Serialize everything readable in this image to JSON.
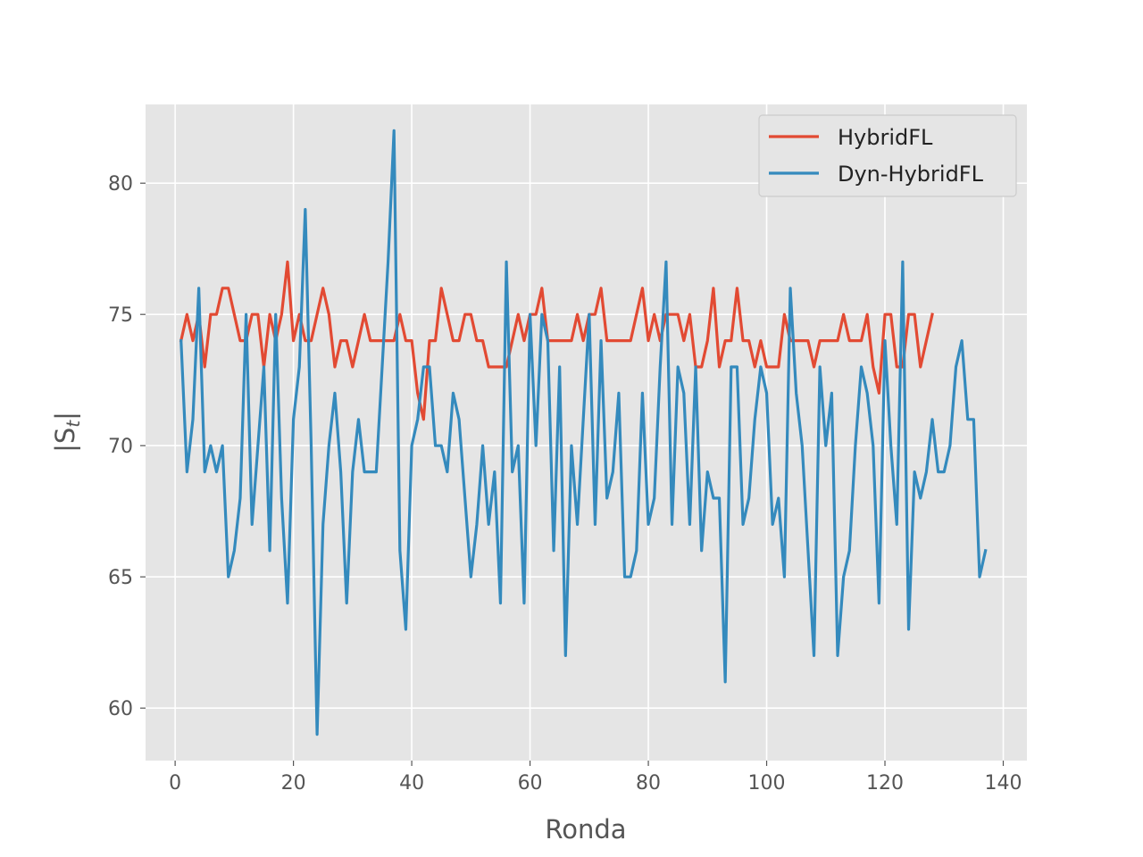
{
  "chart_data": {
    "type": "line",
    "title": "",
    "xlabel": "Ronda",
    "ylabel_base": "|S",
    "ylabel_sub": "t",
    "ylabel_end": "|",
    "xlim": [
      -5,
      144
    ],
    "ylim": [
      58,
      83
    ],
    "xticks": [
      0,
      20,
      40,
      60,
      80,
      100,
      120,
      140
    ],
    "yticks": [
      60,
      65,
      70,
      75,
      80
    ],
    "grid": true,
    "legend_position": "top-right",
    "series": [
      {
        "name": "HybridFL",
        "color": "#E24A33",
        "x_start": 1,
        "values": [
          74,
          75,
          74,
          75,
          73,
          75,
          75,
          76,
          76,
          75,
          74,
          74,
          75,
          75,
          73,
          75,
          74,
          75,
          77,
          74,
          75,
          74,
          74,
          75,
          76,
          75,
          73,
          74,
          74,
          73,
          74,
          75,
          74,
          74,
          74,
          74,
          74,
          75,
          74,
          74,
          72,
          71,
          74,
          74,
          76,
          75,
          74,
          74,
          75,
          75,
          74,
          74,
          73,
          73,
          73,
          73,
          74,
          75,
          74,
          75,
          75,
          76,
          74,
          74,
          74,
          74,
          74,
          75,
          74,
          75,
          75,
          76,
          74,
          74,
          74,
          74,
          74,
          75,
          76,
          74,
          75,
          74,
          75,
          75,
          75,
          74,
          75,
          73,
          73,
          74,
          76,
          73,
          74,
          74,
          76,
          74,
          74,
          73,
          74,
          73,
          73,
          73,
          75,
          74,
          74,
          74,
          74,
          73,
          74,
          74,
          74,
          74,
          75,
          74,
          74,
          74,
          75,
          73,
          72,
          75,
          75,
          73,
          73,
          75,
          75,
          73,
          74,
          75
        ]
      },
      {
        "name": "Dyn-HybridFL",
        "color": "#348ABD",
        "x_start": 1,
        "values": [
          74,
          69,
          71,
          76,
          69,
          70,
          69,
          70,
          65,
          66,
          68,
          75,
          67,
          70,
          73,
          66,
          75,
          68,
          64,
          71,
          73,
          79,
          70,
          59,
          67,
          70,
          72,
          69,
          64,
          69,
          71,
          69,
          69,
          69,
          73,
          77,
          82,
          66,
          63,
          70,
          71,
          73,
          73,
          70,
          70,
          69,
          72,
          71,
          68,
          65,
          67,
          70,
          67,
          69,
          64,
          77,
          69,
          70,
          64,
          75,
          70,
          75,
          74,
          66,
          73,
          62,
          70,
          67,
          71,
          75,
          67,
          74,
          68,
          69,
          72,
          65,
          65,
          66,
          72,
          67,
          68,
          73,
          77,
          67,
          73,
          72,
          67,
          73,
          66,
          69,
          68,
          68,
          61,
          73,
          73,
          67,
          68,
          71,
          73,
          72,
          67,
          68,
          65,
          76,
          72,
          70,
          66,
          62,
          73,
          70,
          72,
          62,
          65,
          66,
          70,
          73,
          72,
          70,
          64,
          74,
          70,
          67,
          77,
          63,
          69,
          68,
          69,
          71,
          69,
          69,
          70,
          73,
          74,
          71,
          71,
          65,
          66
        ]
      }
    ]
  }
}
